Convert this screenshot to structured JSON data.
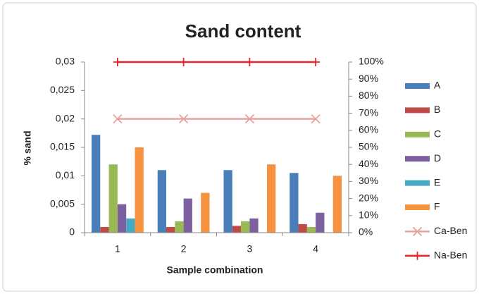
{
  "chart_data": {
    "type": "bar",
    "title": "Sand content",
    "x_label": "Sample combination",
    "y_label": "% sand",
    "categories": [
      "1",
      "2",
      "3",
      "4"
    ],
    "ylim": [
      0,
      0.03
    ],
    "yticks": [
      0,
      {
        "value": 0.005,
        "label": "0,005"
      },
      {
        "value": 0.01,
        "label": "0,01"
      },
      {
        "value": 0.015,
        "label": "0,015"
      },
      {
        "value": 0.02,
        "label": "0,02"
      },
      {
        "value": 0.025,
        "label": "0,025"
      },
      {
        "value": 0.03,
        "label": "0,03"
      }
    ],
    "y2lim": [
      0,
      100
    ],
    "y2ticks": [
      {
        "value": 0,
        "label": "0%"
      },
      {
        "value": 10,
        "label": "10%"
      },
      {
        "value": 20,
        "label": "20%"
      },
      {
        "value": 30,
        "label": "30%"
      },
      {
        "value": 40,
        "label": "40%"
      },
      {
        "value": 50,
        "label": "50%"
      },
      {
        "value": 60,
        "label": "60%"
      },
      {
        "value": 70,
        "label": "70%"
      },
      {
        "value": 80,
        "label": "80%"
      },
      {
        "value": 90,
        "label": "90%"
      },
      {
        "value": 100,
        "label": "100%"
      }
    ],
    "legend_position": "right",
    "grid": false,
    "series": [
      {
        "name": "A",
        "type": "bar",
        "color": "#4a7ebb",
        "values": [
          0.0172,
          0.011,
          0.011,
          0.0105
        ]
      },
      {
        "name": "B",
        "type": "bar",
        "color": "#be4b48",
        "values": [
          0.001,
          0.001,
          0.0012,
          0.0015
        ]
      },
      {
        "name": "C",
        "type": "bar",
        "color": "#98b954",
        "values": [
          0.012,
          0.002,
          0.002,
          0.001
        ]
      },
      {
        "name": "D",
        "type": "bar",
        "color": "#7d60a0",
        "values": [
          0.005,
          0.006,
          0.0025,
          0.0035
        ]
      },
      {
        "name": "E",
        "type": "bar",
        "color": "#46aac5",
        "values": [
          0.0025,
          0,
          0,
          0
        ]
      },
      {
        "name": "F",
        "type": "bar",
        "color": "#f69240",
        "values": [
          0.015,
          0.007,
          0.012,
          0.01
        ]
      },
      {
        "name": "Ca-Ben",
        "type": "line",
        "axis": "y2",
        "marker": "x",
        "color": "#e6a3a0",
        "values": [
          66.7,
          66.7,
          66.7,
          66.7
        ]
      },
      {
        "name": "Na-Ben",
        "type": "line",
        "axis": "y2",
        "marker": "+",
        "color": "#e8262b",
        "values": [
          100,
          100,
          100,
          100
        ]
      }
    ]
  }
}
